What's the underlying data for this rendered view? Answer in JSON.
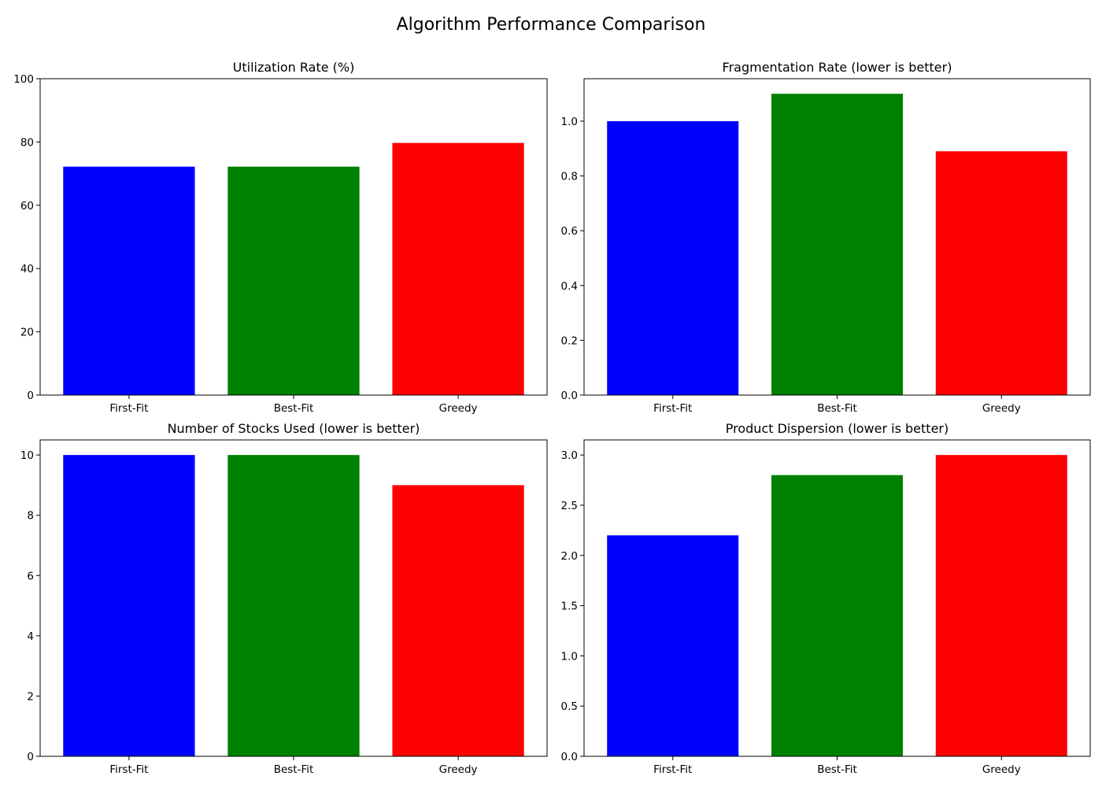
{
  "figure": {
    "title": "Algorithm Performance Comparison"
  },
  "chart_data": [
    {
      "type": "bar",
      "title": "Utilization Rate (%)",
      "xlabel": "",
      "ylabel": "",
      "categories": [
        "First-Fit",
        "Best-Fit",
        "Greedy"
      ],
      "values": [
        72.2,
        72.2,
        79.7
      ],
      "colors": [
        "#0000ff",
        "#008000",
        "#ff0000"
      ],
      "ylim": [
        0,
        100
      ],
      "yticks": [
        0,
        20,
        40,
        60,
        80,
        100
      ],
      "ytick_labels": [
        "0",
        "20",
        "40",
        "60",
        "80",
        "100"
      ],
      "grid": false,
      "legend": "none"
    },
    {
      "type": "bar",
      "title": "Fragmentation Rate (lower is better)",
      "xlabel": "",
      "ylabel": "",
      "categories": [
        "First-Fit",
        "Best-Fit",
        "Greedy"
      ],
      "values": [
        1.0,
        1.1,
        0.89
      ],
      "colors": [
        "#0000ff",
        "#008000",
        "#ff0000"
      ],
      "ylim": [
        0,
        1.155
      ],
      "yticks": [
        0,
        0.2,
        0.4,
        0.6,
        0.8,
        1.0
      ],
      "ytick_labels": [
        "0.0",
        "0.2",
        "0.4",
        "0.6",
        "0.8",
        "1.0"
      ],
      "grid": false,
      "legend": "none"
    },
    {
      "type": "bar",
      "title": "Number of Stocks Used (lower is better)",
      "xlabel": "",
      "ylabel": "",
      "categories": [
        "First-Fit",
        "Best-Fit",
        "Greedy"
      ],
      "values": [
        10,
        10,
        9
      ],
      "colors": [
        "#0000ff",
        "#008000",
        "#ff0000"
      ],
      "ylim": [
        0,
        10.5
      ],
      "yticks": [
        0,
        2,
        4,
        6,
        8,
        10
      ],
      "ytick_labels": [
        "0",
        "2",
        "4",
        "6",
        "8",
        "10"
      ],
      "grid": false,
      "legend": "none"
    },
    {
      "type": "bar",
      "title": "Product Dispersion (lower is better)",
      "xlabel": "",
      "ylabel": "",
      "categories": [
        "First-Fit",
        "Best-Fit",
        "Greedy"
      ],
      "values": [
        2.2,
        2.8,
        3.0
      ],
      "colors": [
        "#0000ff",
        "#008000",
        "#ff0000"
      ],
      "ylim": [
        0,
        3.15
      ],
      "yticks": [
        0,
        0.5,
        1.0,
        1.5,
        2.0,
        2.5,
        3.0
      ],
      "ytick_labels": [
        "0.0",
        "0.5",
        "1.0",
        "1.5",
        "2.0",
        "2.5",
        "3.0"
      ],
      "grid": false,
      "legend": "none"
    }
  ]
}
